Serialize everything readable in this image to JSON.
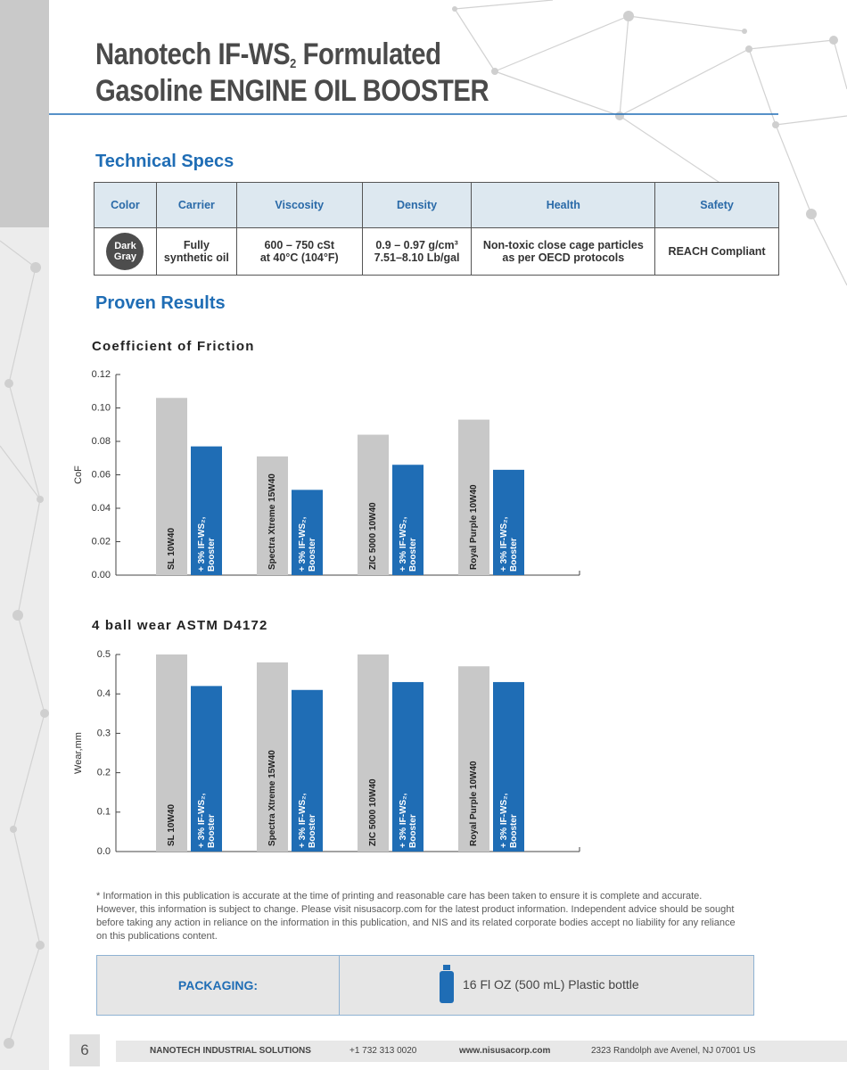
{
  "header": {
    "title_line1": [
      "Nanotech IF-WS",
      "2",
      " Formulated"
    ],
    "title_line2": "Gasoline ENGINE OIL BOOSTER"
  },
  "specs": {
    "heading": "Technical Specs",
    "columns": [
      "Color",
      "Carrier",
      "Viscosity",
      "Density",
      "Health",
      "Safety"
    ],
    "row": [
      [
        "Dark",
        "Gray"
      ],
      [
        "Fully",
        "synthetic oil"
      ],
      [
        "600 – 750 cSt",
        "at 40°C (104°F)"
      ],
      [
        "0.9 – 0.97 g/cm³",
        "7.51–8.10 Lb/gal"
      ],
      [
        "Non-toxic close cage particles",
        "as per OECD protocols"
      ],
      [
        "REACH Compliant"
      ]
    ]
  },
  "results_heading": "Proven Results",
  "chart_data": [
    {
      "type": "bar",
      "title": "Coefficient of Friction",
      "y_label": "CoF",
      "categories": [
        "SL 10W40",
        "Spectra Xtreme 15W40",
        "ZIC 5000 10W40",
        "Royal Purple 10W40"
      ],
      "series": [
        {
          "color": "#c8c8c8",
          "values": [
            0.106,
            0.071,
            0.084,
            0.093
          ]
        },
        {
          "name_lines": [
            "+ 3% IF-WS₂,",
            "Booster"
          ],
          "color": "#1f6db5",
          "values": [
            0.077,
            0.051,
            0.066,
            0.063
          ]
        }
      ],
      "ylim": [
        0,
        0.12
      ],
      "yticks": [
        {
          "value": 0,
          "label": "0.00"
        },
        0.02,
        0.04,
        0.06,
        0.08,
        {
          "value": 0.1,
          "label": "0.10"
        },
        {
          "value": 0.12,
          "label": "0.12"
        }
      ],
      "grid": false
    },
    {
      "type": "bar",
      "title": "4 ball wear ASTM D4172",
      "y_label": "Wear,mm",
      "categories": [
        "SL 10W40",
        "Spectra Xtreme 15W40",
        "ZIC 5000 10W40",
        "Royal Purple 10W40"
      ],
      "series": [
        {
          "color": "#c8c8c8",
          "values": [
            0.5,
            0.48,
            0.5,
            0.47
          ]
        },
        {
          "name_lines": [
            "+ 3% IF-WS₂,",
            "Booster"
          ],
          "color": "#1f6db5",
          "values": [
            0.42,
            0.41,
            0.43,
            0.43
          ]
        }
      ],
      "ylim": [
        0,
        0.5
      ],
      "yticks": [
        {
          "value": 0,
          "label": "0.0"
        },
        0.1,
        0.2,
        0.3,
        0.4,
        0.5
      ],
      "grid": false
    }
  ],
  "disclaimer": "* Information in this publication is accurate at the time of printing and reasonable care has been taken to ensure it is complete and accurate. However, this information is subject to change. Please visit nisusacorp.com for the latest product information. Independent advice should be sought before taking any action in reliance on the information in this publication, and NIS and its related corporate bodies accept no liability for any reliance on this publications content.",
  "packaging": {
    "label": "PACKAGING:",
    "value": "16 Fl OZ (500 mL) Plastic bottle"
  },
  "footer": {
    "page": "6",
    "company": "NANOTECH INDUSTRIAL SOLUTIONS",
    "phone": "+1 732 313 0020",
    "website": "www.nisusacorp.com",
    "address": "2323 Randolph ave Avenel, NJ 07001 US"
  }
}
